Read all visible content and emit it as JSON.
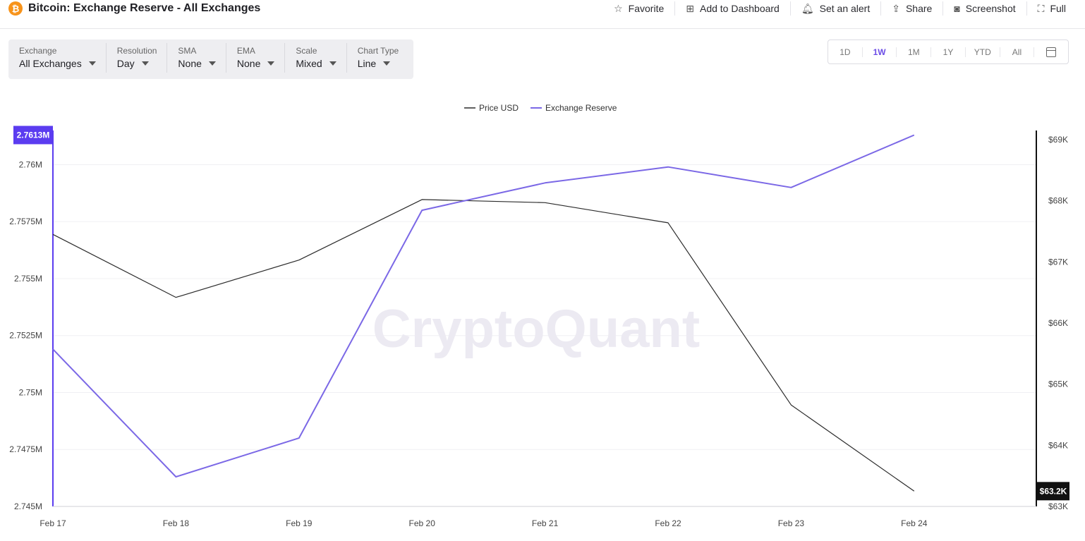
{
  "header": {
    "title": "Bitcoin: Exchange Reserve - All Exchanges",
    "actions": [
      {
        "icon": "star-icon",
        "label": "Favorite"
      },
      {
        "icon": "dashboard-add-icon",
        "label": "Add to Dashboard"
      },
      {
        "icon": "bell-icon",
        "label": "Set an alert"
      },
      {
        "icon": "share-icon",
        "label": "Share"
      },
      {
        "icon": "camera-icon",
        "label": "Screenshot"
      },
      {
        "icon": "fullscreen-icon",
        "label": "Full"
      }
    ]
  },
  "controls": [
    {
      "label": "Exchange",
      "value": "All Exchanges"
    },
    {
      "label": "Resolution",
      "value": "Day"
    },
    {
      "label": "SMA",
      "value": "None"
    },
    {
      "label": "EMA",
      "value": "None"
    },
    {
      "label": "Scale",
      "value": "Mixed"
    },
    {
      "label": "Chart Type",
      "value": "Line"
    }
  ],
  "ranges": {
    "items": [
      "1D",
      "1W",
      "1M",
      "1Y",
      "YTD",
      "All"
    ],
    "active": "1W"
  },
  "watermark": "CryptoQuant",
  "colors": {
    "price": "#2b2b2b",
    "reserve": "#7b68e6",
    "reserve_badge": "#5b3cf0",
    "price_badge": "#111111"
  },
  "chart_data": {
    "type": "line",
    "x": [
      "Feb 17",
      "Feb 18",
      "Feb 19",
      "Feb 20",
      "Feb 21",
      "Feb 22",
      "Feb 23",
      "Feb 24"
    ],
    "legend": [
      "Price USD",
      "Exchange Reserve"
    ],
    "legend_position": "top-center",
    "grid": true,
    "y_left": {
      "series": "Exchange Reserve",
      "range": [
        2.745,
        2.7615
      ],
      "ticks": [
        2.745,
        2.7475,
        2.75,
        2.7525,
        2.755,
        2.7575,
        2.76
      ],
      "tick_labels": [
        "2.745M",
        "2.7475M",
        "2.75M",
        "2.7525M",
        "2.755M",
        "2.7575M",
        "2.76M"
      ],
      "current_label": "2.7613M"
    },
    "y_right": {
      "series": "Price USD",
      "range": [
        63000,
        69150
      ],
      "ticks": [
        63000,
        64000,
        65000,
        66000,
        67000,
        68000,
        69000
      ],
      "tick_labels": [
        "$63K",
        "$64K",
        "$65K",
        "$66K",
        "$67K",
        "$68K",
        "$69K"
      ],
      "current_label": "$63.2K"
    },
    "series": [
      {
        "name": "Price USD",
        "axis": "right",
        "values": [
          67450,
          66420,
          67030,
          68020,
          67970,
          67640,
          64660,
          63250
        ]
      },
      {
        "name": "Exchange Reserve",
        "axis": "left",
        "values": [
          2.7519,
          2.7463,
          2.748,
          2.758,
          2.7592,
          2.7599,
          2.759,
          2.7613
        ]
      }
    ]
  }
}
